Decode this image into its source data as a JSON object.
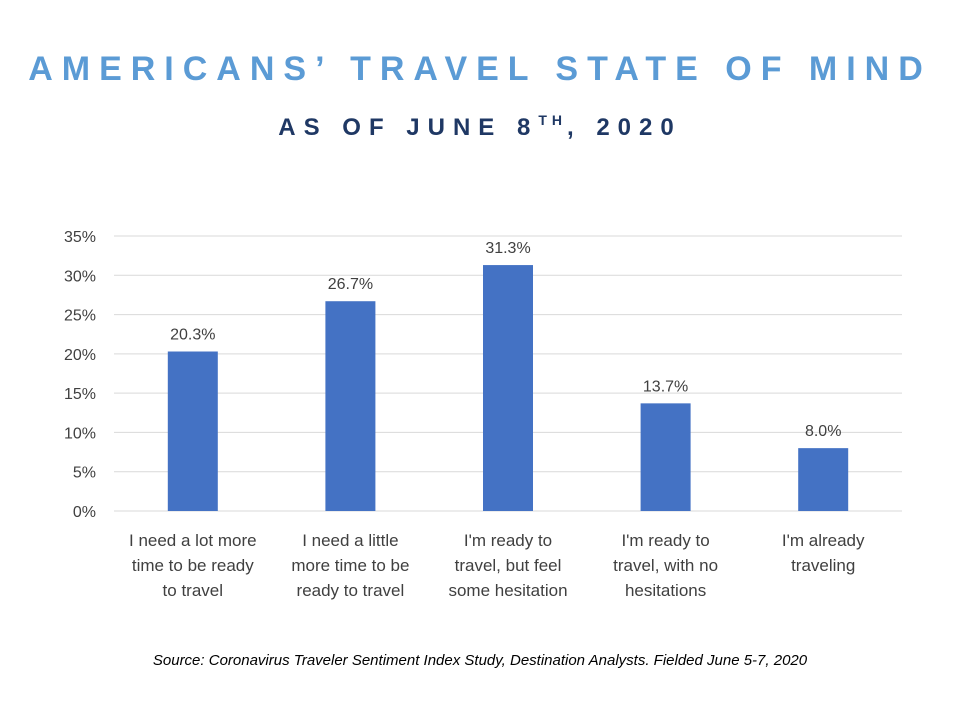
{
  "title": "AMERICANS’ TRAVEL STATE OF MIND",
  "subtitle": {
    "prefix": "AS OF JUNE 8",
    "superscript": "TH",
    "suffix": ", 2020"
  },
  "source": "Source: Coronavirus Traveler Sentiment Index Study, Destination Analysts. Fielded June 5-7, 2020",
  "colors": {
    "title": "#5b9bd5",
    "subtitle": "#1f3864",
    "bar": "#4472c4",
    "grid": "#d9d9d9",
    "axis_text": "#404040"
  },
  "chart_data": {
    "type": "bar",
    "categories": [
      [
        "I need a lot more",
        "time to be ready",
        "to travel"
      ],
      [
        "I need a little",
        "more time to be",
        "ready to travel"
      ],
      [
        "I'm ready to",
        "travel, but feel",
        "some hesitation"
      ],
      [
        "I'm ready to",
        "travel, with no",
        "hesitations"
      ],
      [
        "I'm already",
        "traveling"
      ]
    ],
    "values": [
      20.3,
      26.7,
      31.3,
      13.7,
      8.0
    ],
    "data_labels": [
      "20.3%",
      "26.7%",
      "31.3%",
      "13.7%",
      "8.0%"
    ],
    "y_ticks": [
      "0%",
      "5%",
      "10%",
      "15%",
      "20%",
      "25%",
      "30%",
      "35%"
    ],
    "ylim": [
      0,
      35
    ],
    "y_step": 5,
    "grid": true,
    "legend": false
  }
}
